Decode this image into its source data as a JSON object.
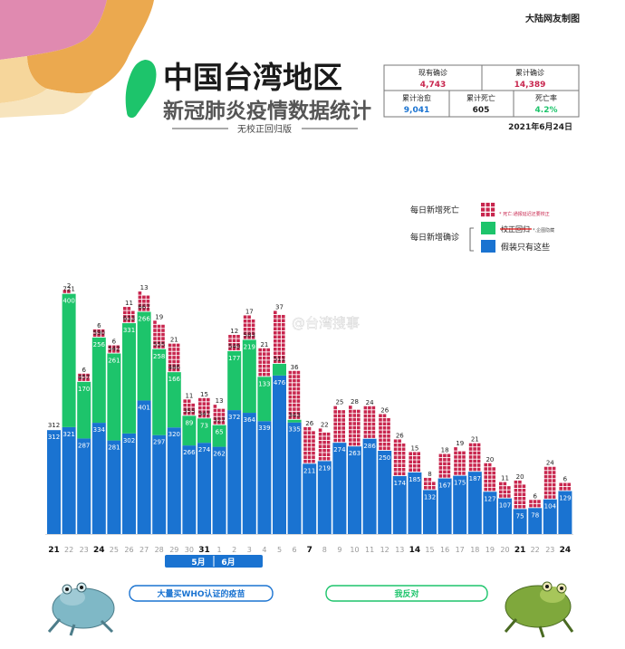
{
  "header": {
    "credit": "大陆网友制图",
    "title_line1": "中国台湾地区",
    "title_line2": "新冠肺炎疫情数据统计",
    "subtitle": "无校正回归版",
    "date": "2021年6月24日"
  },
  "stats": {
    "current_label": "现有确诊",
    "current_value": "4,743",
    "total_label": "累计确诊",
    "total_value": "14,389",
    "recovered_label": "累计治愈",
    "recovered_value": "9,041",
    "deaths_label": "累计死亡",
    "deaths_value": "605",
    "rate_label": "死亡率",
    "rate_value": "4.2%"
  },
  "legend": {
    "deaths_label": "每日新增死亡",
    "deaths_note": "* 死亡:通报延迟还要校正",
    "confirmed_label": "每日新增确诊",
    "green_struck": "校正回归",
    "green_note": "*,企图隐藏",
    "blue_label": "假装只有这些"
  },
  "watermark": "@台湾搜事",
  "months": {
    "may": "5月",
    "june": "6月"
  },
  "banners": {
    "left": "大量买WHO认证的疫苗",
    "right": "我反对"
  },
  "colors": {
    "blue": "#1a73d1",
    "green": "#1dc46b",
    "red": "#c8264e",
    "gray": "#bfbfbf",
    "teal": "#2b9a8e"
  },
  "chart_data": {
    "type": "bar",
    "x": [
      "21",
      "22",
      "23",
      "24",
      "25",
      "26",
      "27",
      "28",
      "29",
      "30",
      "31",
      "1",
      "2",
      "3",
      "4",
      "5",
      "6",
      "7",
      "8",
      "9",
      "10",
      "11",
      "12",
      "13",
      "14",
      "15",
      "16",
      "17",
      "18",
      "19",
      "20",
      "21",
      "22",
      "23",
      "24"
    ],
    "bold_x": [
      "24",
      "31",
      "7",
      "14",
      "21"
    ],
    "series": [
      {
        "name": "假装只有这些",
        "values": [
          312,
          321,
          287,
          334,
          281,
          302,
          401,
          297,
          320,
          266,
          274,
          262,
          372,
          364,
          339,
          476,
          335,
          211,
          219,
          274,
          263,
          286,
          250,
          174,
          185,
          132,
          167,
          175,
          187,
          127,
          107,
          75,
          78,
          104,
          129
        ]
      },
      {
        "name": "校正回归",
        "values": [
          0,
          400,
          170,
          256,
          261,
          331,
          266,
          258,
          166,
          89,
          73,
          65,
          177,
          219,
          133,
          35,
          8,
          0,
          0,
          0,
          0,
          0,
          0,
          0,
          0,
          0,
          0,
          0,
          0,
          0,
          0,
          0,
          0,
          0,
          0
        ]
      },
      {
        "name": "每日新增死亡",
        "values": [
          0,
          2,
          6,
          6,
          6,
          11,
          13,
          19,
          21,
          11,
          15,
          13,
          12,
          17,
          21,
          37,
          36,
          26,
          22,
          25,
          28,
          24,
          26,
          26,
          15,
          8,
          18,
          19,
          21,
          20,
          11,
          20,
          6,
          24,
          6
        ]
      }
    ],
    "totals": [
      312,
      721,
      457,
      590,
      542,
      633,
      667,
      555,
      486,
      355,
      347,
      327,
      549,
      583,
      null,
      511,
      343,
      null,
      null,
      null,
      null,
      null,
      null,
      null,
      null,
      null,
      null,
      null,
      null,
      null,
      null,
      null,
      null,
      null,
      null
    ],
    "blue_labels": [
      "312",
      "321",
      "287",
      "334",
      "281",
      "302",
      "401",
      "297",
      "320",
      "266",
      "274",
      "262",
      "372",
      "364",
      "339",
      "476",
      "335",
      "211",
      "219",
      "274",
      "263",
      "286",
      "250",
      "174",
      "185",
      "132",
      "167",
      "175",
      "187",
      "127",
      "107",
      "75",
      "78",
      "104",
      "129"
    ],
    "green_labels": [
      "",
      "400",
      "170",
      "256",
      "261",
      "331",
      "266",
      "258",
      "166",
      "89",
      "73",
      "65",
      "177",
      "219",
      "133",
      "",
      "",
      "",
      "",
      "",
      "",
      "",
      "",
      "",
      "",
      "",
      "",
      "",
      "",
      "",
      "",
      "",
      "",
      "",
      ""
    ],
    "death_labels": [
      "",
      "2",
      "6",
      "6",
      "6",
      "11",
      "13",
      "19",
      "21",
      "11",
      "15",
      "13",
      "12",
      "17",
      "21",
      "37",
      "36",
      "26",
      "22",
      "25",
      "28",
      "24",
      "26",
      "26",
      "15",
      "8",
      "18",
      "19",
      "21",
      "20",
      "11",
      "20",
      "6",
      "24",
      "6"
    ],
    "total_labels": [
      "",
      "721",
      "457",
      "590",
      "542",
      "633",
      "667",
      "555",
      "486",
      "355",
      "347",
      "327",
      "549",
      "583",
      "",
      "511",
      "343",
      "",
      "",
      "",
      "",
      "",
      "",
      "",
      "",
      "",
      "",
      "",
      "",
      "",
      "",
      "",
      "",
      "",
      ""
    ]
  }
}
